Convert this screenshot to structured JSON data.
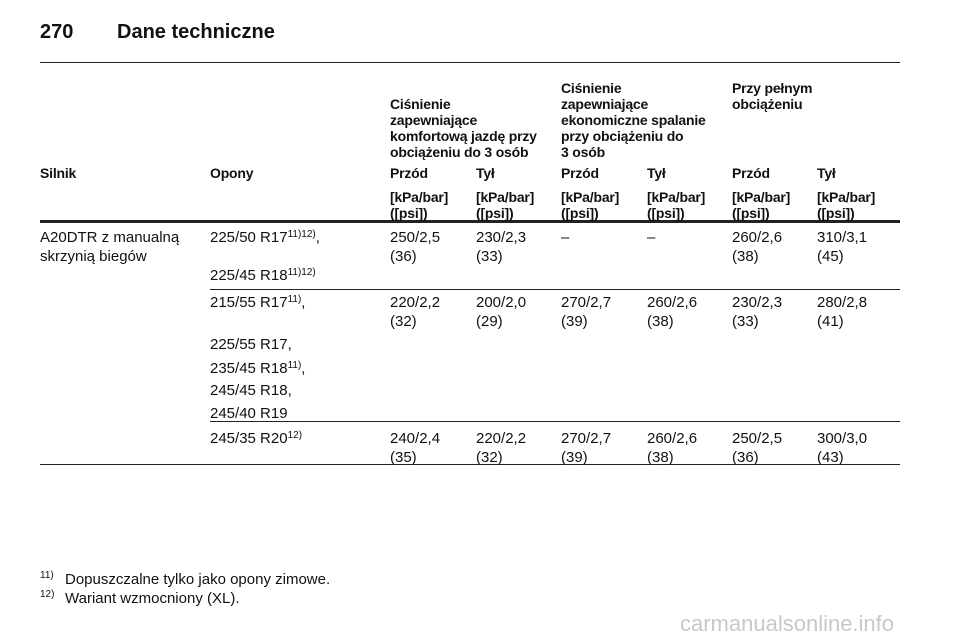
{
  "header": {
    "page_number": "270",
    "title": "Dane techniczne"
  },
  "table": {
    "group_headers": [
      {
        "lines": [
          "Ciśnienie",
          "zapewniające",
          "komfortową jazdę przy",
          "obciążeniu do 3 osób"
        ]
      },
      {
        "lines": [
          "Ciśnienie",
          "zapewniające",
          "ekonomiczne spalanie",
          "przy obciążeniu do",
          "3 osób"
        ]
      },
      {
        "lines": [
          "Przy pełnym",
          "obciążeniu"
        ]
      }
    ],
    "columns": [
      "Silnik",
      "Opony",
      "Przód",
      "Tył",
      "Przód",
      "Tył",
      "Przód",
      "Tył"
    ],
    "units": [
      {
        "kpa": "[kPa/bar]",
        "psi": "([psi])"
      },
      {
        "kpa": "[kPa/bar]",
        "psi": "([psi])"
      },
      {
        "kpa": "[kPa/bar]",
        "psi": "([psi])"
      },
      {
        "kpa": "[kPa/bar]",
        "psi": "([psi])"
      },
      {
        "kpa": "[kPa/bar]",
        "psi": "([psi])"
      },
      {
        "kpa": "[kPa/bar]",
        "psi": "([psi])"
      }
    ],
    "rows": [
      {
        "engine": [
          "A20DTR z manualną",
          "skrzynią biegów"
        ],
        "tyres": [
          {
            "text": "225/50 R17",
            "sup": "11)12)",
            "after": ","
          },
          {
            "text": "225/45 R18",
            "sup": "11)12)"
          }
        ],
        "values": [
          [
            "250/2,5",
            "(36)"
          ],
          [
            "230/2,3",
            "(33)"
          ],
          [
            "–"
          ],
          [
            "–"
          ],
          [
            "260/2,6",
            "(38)"
          ],
          [
            "310/3,1",
            "(45)"
          ]
        ]
      },
      {
        "tyres": [
          {
            "text": "215/55 R17",
            "sup": "11)",
            "after": ","
          },
          {
            "text": "225/55 R17,"
          },
          {
            "text": "235/45 R18",
            "sup": "11)",
            "after": ","
          },
          {
            "text": "245/45 R18,"
          },
          {
            "text": "245/40 R19"
          }
        ],
        "values": [
          [
            "220/2,2",
            "(32)"
          ],
          [
            "200/2,0",
            "(29)"
          ],
          [
            "270/2,7",
            "(39)"
          ],
          [
            "260/2,6",
            "(38)"
          ],
          [
            "230/2,3",
            "(33)"
          ],
          [
            "280/2,8",
            "(41)"
          ]
        ]
      },
      {
        "tyres": [
          {
            "text": "245/35 R20",
            "sup": "12)"
          }
        ],
        "values": [
          [
            "240/2,4",
            "(35)"
          ],
          [
            "220/2,2",
            "(32)"
          ],
          [
            "270/2,7",
            "(39)"
          ],
          [
            "260/2,6",
            "(38)"
          ],
          [
            "250/2,5",
            "(36)"
          ],
          [
            "300/3,0",
            "(43)"
          ]
        ]
      }
    ]
  },
  "footnotes": [
    {
      "mark": "11)",
      "text": "Dopuszczalne tylko jako opony zimowe."
    },
    {
      "mark": "12)",
      "text": "Wariant wzmocniony (XL)."
    }
  ],
  "watermark": "carmanualsonline.info"
}
